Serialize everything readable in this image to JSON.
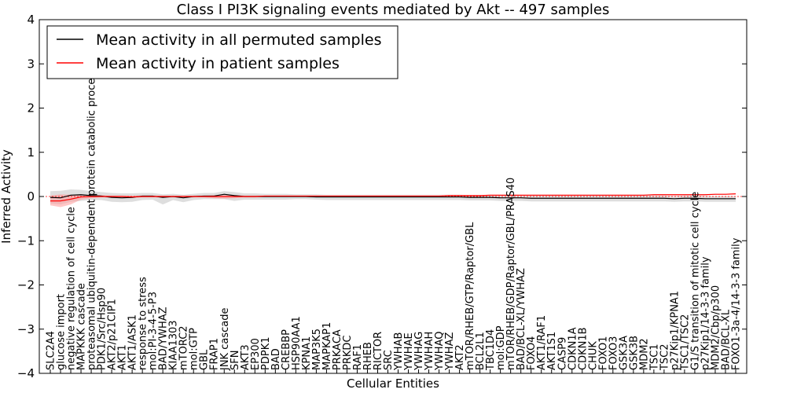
{
  "chart_data": {
    "type": "line",
    "title": "Class I PI3K signaling events mediated by Akt -- 497 samples",
    "xlabel": "Cellular Entities",
    "ylabel": "Inferred Activity",
    "ylim": [
      -4,
      4
    ],
    "yticks": [
      "4",
      "3",
      "2",
      "1",
      "0",
      "−1",
      "−2",
      "−3",
      "−4"
    ],
    "grid": false,
    "legend_position": "top-left",
    "legend": [
      "Mean activity in all permuted samples",
      "Mean activity in patient samples"
    ],
    "colors": {
      "permuted": "#000000",
      "patient": "#ff0000",
      "permuted_band": "#d3d3d3",
      "patient_band": "#ff9999"
    },
    "categories": [
      "SLC2A4",
      "glucose import",
      "negative regulation of cell cycle",
      "MAPKKK cascade",
      "proteasomal ubiquitin-dependent protein catabolic process",
      "PDK1/Src/Hsp90",
      "AKT2/p21CIP1",
      "AKT1",
      "AKT1/ASK1",
      "response to stress",
      "mol:PI-3-4-5-P3",
      "BAD/YWHAZ",
      "KIAA1303",
      "mTORC2",
      "mol:GTP",
      "GBL",
      "FRAP1",
      "JNK cascade",
      "SFN",
      "AKT3",
      "EP300",
      "PDPK1",
      "BAD",
      "CREBBP",
      "HSP90AA1",
      "KPNA1",
      "MAP3K5",
      "MAPKAP1",
      "PRKACA",
      "PRKDC",
      "RAF1",
      "RHEB",
      "RICTOR",
      "SRC",
      "YWHAB",
      "YWHAE",
      "YWHAG",
      "YWHAH",
      "YWHAQ",
      "YWHAZ",
      "AKT2",
      "mTOR/RHEB/GTP/Raptor/GBL",
      "BCL2L1",
      "TBC1D4",
      "mol:GDP",
      "mTOR/RHEB/GDP/Raptor/GBL/PRAS40",
      "BAD/BCL-XL/YWHAZ",
      "FOXO4",
      "AKT1/RAF1",
      "AKT1S1",
      "CASP9",
      "CDKN1A",
      "CDKN1B",
      "CHUK",
      "FOXO1",
      "FOXO3",
      "GSK3A",
      "GSK3B",
      "MDM2",
      "TSC1",
      "TSC2",
      "p27Kip1/KPNA1",
      "TSC1/TSC2",
      "G1/S transition of mitotic cell cycle",
      "p27Kip1/14-3-3 family",
      "MDM2/Cbp/p300",
      "BAD/BCL-XL",
      "FOXO1-3a-4/14-3-3 family"
    ],
    "series": [
      {
        "name": "Mean activity in all permuted samples",
        "color": "#000000",
        "values": [
          -0.02,
          -0.03,
          0.03,
          0.04,
          0.02,
          0.01,
          -0.02,
          -0.03,
          -0.02,
          0.01,
          0.01,
          -0.02,
          0.0,
          -0.03,
          0.0,
          0.01,
          0.01,
          0.05,
          0.02,
          0.0,
          0.0,
          0.0,
          0.0,
          0.0,
          0.0,
          0.0,
          -0.01,
          -0.01,
          -0.01,
          -0.01,
          -0.01,
          -0.01,
          -0.01,
          -0.01,
          -0.01,
          -0.01,
          -0.01,
          -0.01,
          -0.01,
          -0.01,
          -0.01,
          -0.02,
          -0.02,
          -0.02,
          -0.03,
          -0.03,
          -0.03,
          -0.04,
          -0.04,
          -0.04,
          -0.04,
          -0.04,
          -0.04,
          -0.04,
          -0.04,
          -0.04,
          -0.04,
          -0.04,
          -0.04,
          -0.04,
          -0.04,
          -0.05,
          -0.04,
          -0.04,
          -0.05,
          -0.05,
          -0.05,
          -0.05
        ],
        "upper": [
          0.12,
          0.13,
          0.16,
          0.15,
          0.12,
          0.1,
          0.08,
          0.07,
          0.07,
          0.08,
          0.08,
          0.05,
          0.06,
          0.04,
          0.06,
          0.08,
          0.08,
          0.12,
          0.1,
          0.07,
          0.07,
          0.06,
          0.06,
          0.06,
          0.05,
          0.05,
          0.05,
          0.04,
          0.04,
          0.04,
          0.04,
          0.04,
          0.04,
          0.04,
          0.04,
          0.04,
          0.04,
          0.04,
          0.04,
          0.04,
          0.04,
          0.03,
          0.03,
          0.03,
          0.03,
          0.03,
          0.02,
          0.02,
          0.02,
          0.02,
          0.02,
          0.02,
          0.02,
          0.02,
          0.02,
          0.02,
          0.02,
          0.02,
          0.02,
          0.02,
          0.02,
          0.01,
          0.02,
          0.02,
          0.01,
          0.01,
          0.01,
          0.01
        ],
        "lower": [
          -0.16,
          -0.18,
          -0.12,
          -0.1,
          -0.08,
          -0.08,
          -0.12,
          -0.13,
          -0.12,
          -0.08,
          -0.07,
          -0.18,
          -0.08,
          -0.13,
          -0.08,
          -0.06,
          -0.06,
          -0.06,
          -0.1,
          -0.07,
          -0.07,
          -0.07,
          -0.07,
          -0.07,
          -0.06,
          -0.06,
          -0.07,
          -0.08,
          -0.08,
          -0.08,
          -0.08,
          -0.08,
          -0.08,
          -0.08,
          -0.08,
          -0.08,
          -0.08,
          -0.08,
          -0.08,
          -0.08,
          -0.08,
          -0.09,
          -0.09,
          -0.09,
          -0.1,
          -0.1,
          -0.1,
          -0.11,
          -0.11,
          -0.11,
          -0.11,
          -0.11,
          -0.11,
          -0.11,
          -0.11,
          -0.11,
          -0.11,
          -0.11,
          -0.11,
          -0.11,
          -0.11,
          -0.12,
          -0.11,
          -0.11,
          -0.12,
          -0.12,
          -0.12,
          -0.12
        ]
      },
      {
        "name": "Mean activity in patient samples",
        "color": "#ff0000",
        "values": [
          -0.1,
          -0.1,
          -0.06,
          -0.01,
          0.0,
          0.0,
          0.0,
          0.0,
          -0.01,
          0.0,
          0.0,
          0.0,
          0.0,
          0.0,
          0.0,
          0.0,
          0.0,
          0.0,
          0.0,
          0.0,
          0.0,
          0.01,
          0.01,
          0.01,
          0.01,
          0.01,
          0.01,
          0.01,
          0.01,
          0.01,
          0.01,
          0.01,
          0.01,
          0.01,
          0.01,
          0.01,
          0.01,
          0.01,
          0.01,
          0.02,
          0.02,
          0.02,
          0.02,
          0.03,
          0.03,
          0.03,
          0.03,
          0.03,
          0.03,
          0.03,
          0.03,
          0.03,
          0.03,
          0.03,
          0.03,
          0.03,
          0.03,
          0.03,
          0.03,
          0.04,
          0.04,
          0.04,
          0.04,
          0.04,
          0.04,
          0.05,
          0.05,
          0.06
        ],
        "upper": [
          0.02,
          0.05,
          0.04,
          0.05,
          0.03,
          0.03,
          0.02,
          0.02,
          0.02,
          0.02,
          0.02,
          0.02,
          0.02,
          0.02,
          0.02,
          0.02,
          0.03,
          0.03,
          0.03,
          0.02,
          0.02,
          0.02,
          0.02,
          0.02,
          0.02,
          0.02,
          0.02,
          0.02,
          0.02,
          0.02,
          0.02,
          0.02,
          0.02,
          0.02,
          0.02,
          0.02,
          0.02,
          0.02,
          0.02,
          0.03,
          0.03,
          0.03,
          0.03,
          0.04,
          0.04,
          0.04,
          0.04,
          0.04,
          0.04,
          0.04,
          0.04,
          0.04,
          0.04,
          0.04,
          0.04,
          0.04,
          0.04,
          0.04,
          0.04,
          0.05,
          0.05,
          0.05,
          0.05,
          0.05,
          0.05,
          0.06,
          0.06,
          0.07
        ],
        "lower": [
          -0.2,
          -0.24,
          -0.18,
          -0.07,
          -0.04,
          -0.02,
          -0.02,
          -0.02,
          -0.03,
          -0.02,
          -0.02,
          -0.02,
          -0.02,
          -0.02,
          -0.02,
          -0.02,
          -0.04,
          -0.05,
          -0.04,
          -0.02,
          -0.02,
          -0.01,
          -0.01,
          -0.01,
          -0.01,
          -0.01,
          -0.01,
          -0.01,
          -0.01,
          -0.01,
          -0.01,
          -0.01,
          -0.01,
          -0.01,
          0.0,
          0.0,
          0.0,
          0.0,
          0.0,
          0.01,
          0.01,
          0.01,
          0.01,
          0.02,
          0.02,
          0.02,
          0.02,
          0.02,
          0.02,
          0.02,
          0.02,
          0.02,
          0.02,
          0.02,
          0.02,
          0.02,
          0.02,
          0.02,
          0.02,
          0.03,
          0.03,
          0.03,
          0.03,
          0.03,
          0.03,
          0.04,
          0.04,
          0.05
        ]
      }
    ]
  }
}
